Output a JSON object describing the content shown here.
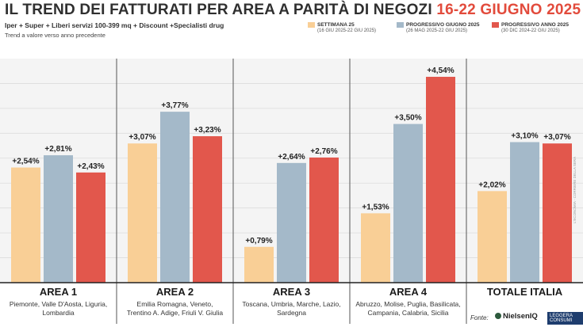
{
  "header": {
    "title_main": "IL TREND DEI FATTURATI PER AREA A PARITÀ DI NEGOZI",
    "title_dates": "16-22 GIUGNO 2025",
    "subtitle": "Iper + Super + Liberi servizi 100-399 mq + Discount +Specialisti drug",
    "note": "Trend a valore verso anno precedente"
  },
  "colors": {
    "s1": "#f9cf96",
    "s2": "#a4b9c9",
    "s3": "#e2574c",
    "accent": "#e24b3c"
  },
  "legend": [
    {
      "name": "SETTIMANA 25",
      "dates": "(16 GIU 2025-22 GIU 2025)"
    },
    {
      "name": "PROGRESSIVO GIUGNO 2025",
      "dates": "(26 MAG 2025-22 GIU 2025)"
    },
    {
      "name": "PROGRESSIVO ANNO 2025",
      "dates": "(30 DIC 2024-22 GIU 2025)"
    }
  ],
  "chart_data": {
    "type": "bar",
    "title": "IL TREND DEI FATTURATI PER AREA A PARITÀ DI NEGOZI 16-22 GIUGNO 2025",
    "ylabel": "Trend a valore verso anno precedente (%)",
    "ylim": [
      0,
      4.75
    ],
    "grid": true,
    "categories": [
      "AREA 1",
      "AREA 2",
      "AREA 3",
      "AREA 4",
      "TOTALE ITALIA"
    ],
    "category_regions": [
      [
        "Piemonte, Valle D'Aosta, Liguria,",
        "Lombardia"
      ],
      [
        "Emilia Romagna, Veneto,",
        "Trentino A. Adige, Friuli V. Giulia"
      ],
      [
        "Toscana, Umbria, Marche, Lazio,",
        "Sardegna"
      ],
      [
        "Abruzzo, Molise, Puglia, Basilicata,",
        "Campania, Calabria, Sicilia"
      ],
      []
    ],
    "series": [
      {
        "name": "SETTIMANA 25",
        "values": [
          2.54,
          3.07,
          0.79,
          1.53,
          2.02
        ],
        "labels": [
          "+2,54%",
          "+3,07%",
          "+0,79%",
          "+1,53%",
          "+2,02%"
        ]
      },
      {
        "name": "PROGRESSIVO GIUGNO 2025",
        "values": [
          2.81,
          3.77,
          2.64,
          3.5,
          3.1
        ],
        "labels": [
          "+2,81%",
          "+3,77%",
          "+2,64%",
          "+3,50%",
          "+3,10%"
        ]
      },
      {
        "name": "PROGRESSIVO ANNO 2025",
        "values": [
          2.43,
          3.23,
          2.76,
          4.54,
          3.07
        ],
        "labels": [
          "+2,43%",
          "+3,23%",
          "+2,76%",
          "+4,54%",
          "+3,07%"
        ]
      }
    ]
  },
  "footer": {
    "source_label": "Fonte:",
    "source_brand": "NielsenIQ",
    "source_partner": "LEGGERA CONSUMI",
    "credit": "L'ECONOMIA - CORRIERE DELLA SERA"
  }
}
